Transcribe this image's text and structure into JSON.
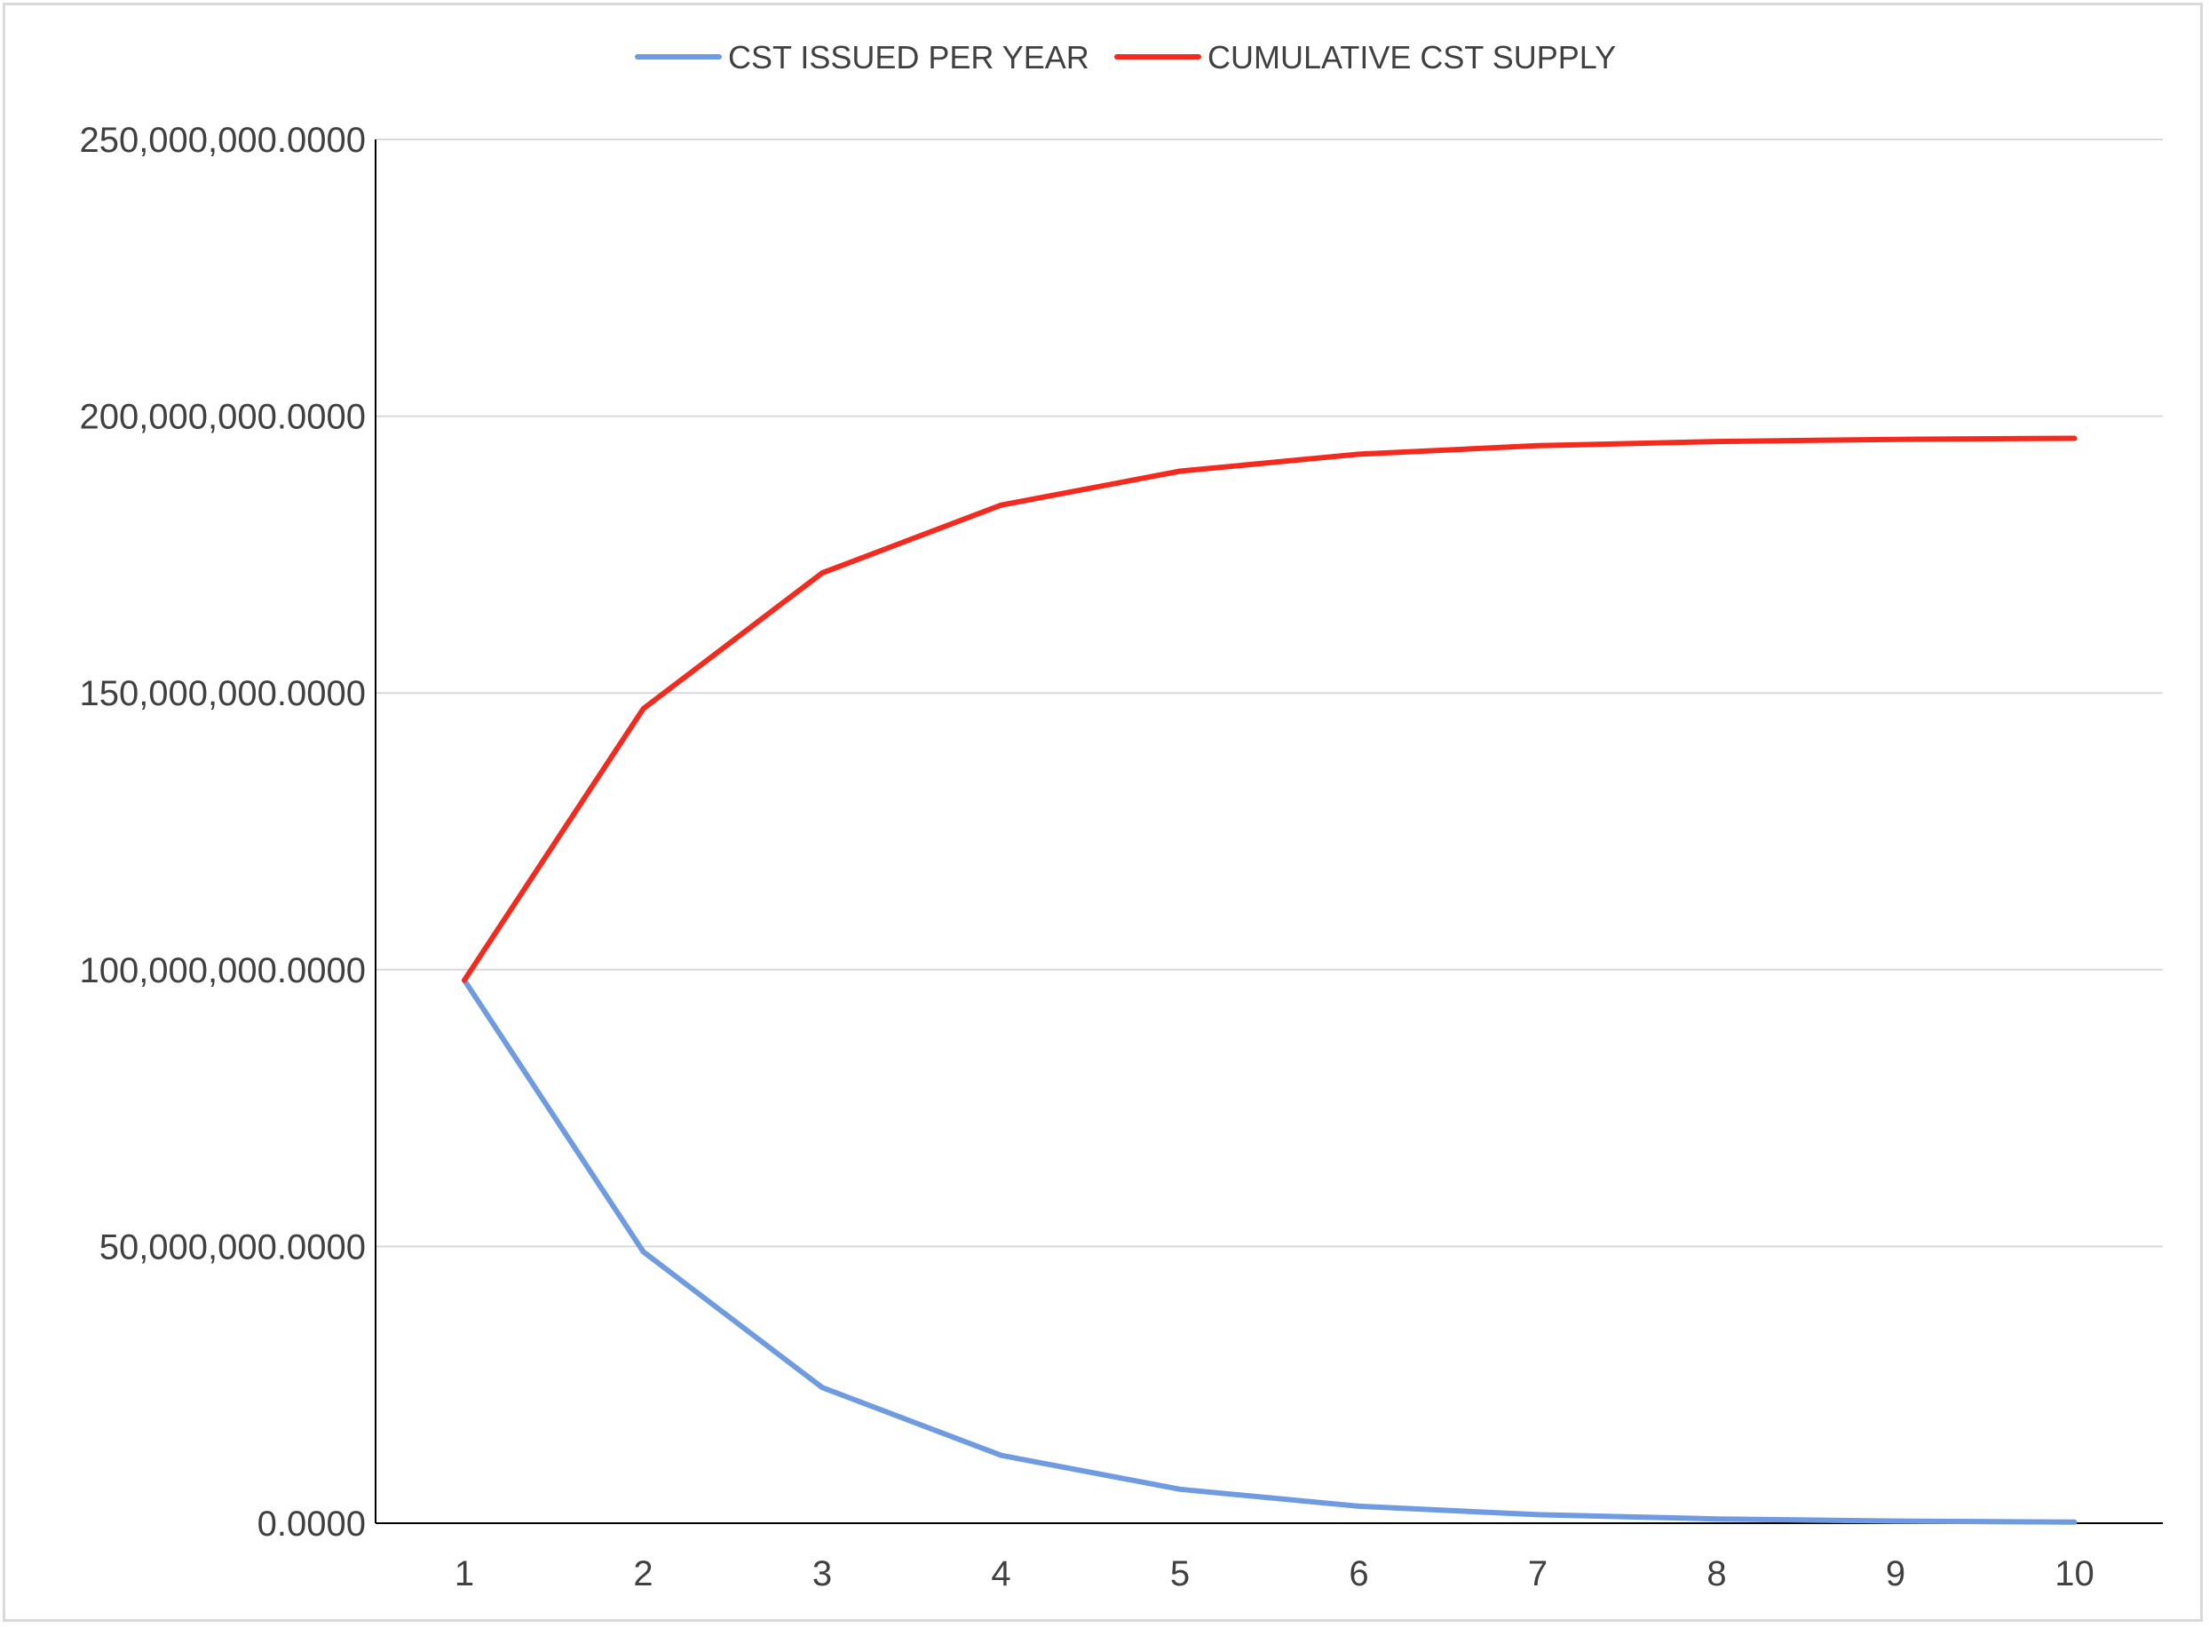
{
  "chart_data": {
    "type": "line",
    "x": [
      1,
      2,
      3,
      4,
      5,
      6,
      7,
      8,
      9,
      10
    ],
    "series": [
      {
        "name": "CST ISSUED PER YEAR",
        "color": "#6f9be0",
        "values": [
          98100000,
          49050000,
          24525000,
          12262500,
          6131250,
          3065625,
          1532813,
          766406,
          383203,
          191602
        ]
      },
      {
        "name": "CUMULATIVE CST SUPPLY",
        "color": "#f32b1f",
        "values": [
          98100000,
          147150000,
          171675000,
          183937500,
          190068750,
          193134375,
          194667188,
          195433594,
          195816797,
          196008399
        ]
      }
    ],
    "ylim": [
      0,
      250000000
    ],
    "y_ticks": [
      "0.0000",
      "50,000,000.0000",
      "100,000,000.0000",
      "150,000,000.0000",
      "200,000,000.0000",
      "250,000,000.0000"
    ],
    "x_ticks": [
      "1",
      "2",
      "3",
      "4",
      "5",
      "6",
      "7",
      "8",
      "9",
      "10"
    ],
    "grid": true,
    "legend_position": "top-center",
    "title": "",
    "xlabel": "",
    "ylabel": ""
  }
}
